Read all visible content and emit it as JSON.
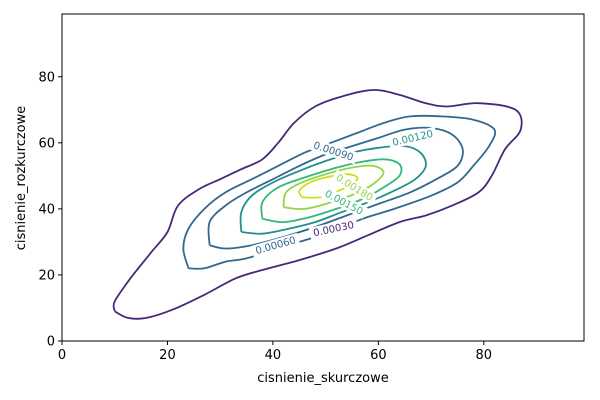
{
  "chart_data": {
    "type": "contour",
    "xlabel": "cisnienie_skurczowe",
    "ylabel": "cisnienie_rozkurczowe",
    "xlim": [
      0,
      99
    ],
    "ylim": [
      0,
      99
    ],
    "x_ticks": [
      0,
      20,
      40,
      60,
      80
    ],
    "y_ticks": [
      0,
      20,
      40,
      60,
      80
    ],
    "grid": false,
    "levels": [
      {
        "value": 0.0003,
        "label": "0.00030",
        "color": "#482878",
        "label_at": [
          51.5,
          34
        ],
        "label_angle": -12,
        "path": [
          [
            10,
            9
          ],
          [
            12.5,
            7
          ],
          [
            16,
            7
          ],
          [
            21,
            9.5
          ],
          [
            27,
            14
          ],
          [
            33,
            19
          ],
          [
            38,
            21.5
          ],
          [
            45,
            24.5
          ],
          [
            52,
            28
          ],
          [
            58,
            32
          ],
          [
            64,
            36
          ],
          [
            69,
            38
          ],
          [
            74,
            41
          ],
          [
            79,
            45
          ],
          [
            81.5,
            50
          ],
          [
            84,
            58
          ],
          [
            87,
            64
          ],
          [
            86,
            70
          ],
          [
            79,
            72
          ],
          [
            73,
            71
          ],
          [
            69,
            72
          ],
          [
            64,
            74.5
          ],
          [
            59,
            76
          ],
          [
            53,
            74
          ],
          [
            48,
            71
          ],
          [
            44,
            66
          ],
          [
            41,
            60
          ],
          [
            38,
            55
          ],
          [
            34,
            52
          ],
          [
            30,
            49
          ],
          [
            26,
            46
          ],
          [
            22,
            41
          ],
          [
            20,
            33
          ],
          [
            17,
            27
          ],
          [
            13,
            19
          ],
          [
            10,
            12
          ],
          [
            10,
            9
          ]
        ]
      },
      {
        "value": 0.0006,
        "label": "0.00060",
        "color": "#31688e",
        "label_at": [
          40.5,
          29
        ],
        "label_angle": -16,
        "path": [
          [
            24,
            22
          ],
          [
            27,
            22
          ],
          [
            31,
            24
          ],
          [
            35,
            25
          ],
          [
            40,
            27.5
          ],
          [
            45,
            30
          ],
          [
            51,
            33
          ],
          [
            57,
            37
          ],
          [
            63,
            40
          ],
          [
            70,
            44
          ],
          [
            75,
            48
          ],
          [
            78,
            53
          ],
          [
            81,
            59
          ],
          [
            82,
            64
          ],
          [
            78,
            67
          ],
          [
            72,
            68
          ],
          [
            66,
            68
          ],
          [
            61,
            66
          ],
          [
            56,
            63
          ],
          [
            51,
            60
          ],
          [
            46,
            57
          ],
          [
            41,
            53
          ],
          [
            36,
            49
          ],
          [
            31,
            45
          ],
          [
            27,
            40
          ],
          [
            24,
            34
          ],
          [
            23,
            28
          ],
          [
            24,
            22
          ]
        ]
      },
      {
        "value": 0.0009,
        "label": "0.00090",
        "color": "#31688e",
        "label_at": [
          51.5,
          57.5
        ],
        "label_angle": 18,
        "path": [
          [
            28,
            29
          ],
          [
            31,
            28
          ],
          [
            36,
            29
          ],
          [
            42,
            31.5
          ],
          [
            48,
            34.5
          ],
          [
            54,
            38
          ],
          [
            60,
            41.5
          ],
          [
            66,
            45
          ],
          [
            71,
            49
          ],
          [
            75,
            53
          ],
          [
            76,
            58
          ],
          [
            74,
            62.5
          ],
          [
            70,
            64.5
          ],
          [
            65,
            64
          ],
          [
            60,
            61.5
          ],
          [
            55,
            59
          ],
          [
            50,
            56.5
          ],
          [
            45,
            53
          ],
          [
            40,
            49
          ],
          [
            35,
            45
          ],
          [
            31,
            41
          ],
          [
            28,
            36
          ],
          [
            28,
            29
          ]
        ]
      },
      {
        "value": 0.0012,
        "label": "0.00120",
        "color": "#21918c",
        "label_at": [
          66.5,
          61.5
        ],
        "label_angle": -13,
        "path": [
          [
            34,
            33
          ],
          [
            38,
            32.5
          ],
          [
            43,
            34
          ],
          [
            48,
            36
          ],
          [
            53,
            39
          ],
          [
            58,
            42
          ],
          [
            63,
            45.5
          ],
          [
            67,
            49
          ],
          [
            69,
            53
          ],
          [
            68,
            57
          ],
          [
            65,
            59
          ],
          [
            60,
            58.5
          ],
          [
            55,
            57
          ],
          [
            50,
            54.5
          ],
          [
            45,
            51.5
          ],
          [
            40,
            48
          ],
          [
            36,
            44
          ],
          [
            34,
            39
          ],
          [
            34,
            33
          ]
        ]
      },
      {
        "value": 0.0015,
        "label": "0.00150",
        "color": "#35b779",
        "label_at": [
          53.5,
          42
        ],
        "label_angle": 28,
        "path": [
          [
            38,
            37
          ],
          [
            42,
            36
          ],
          [
            47,
            37.5
          ],
          [
            52,
            40
          ],
          [
            57,
            43
          ],
          [
            61,
            46.5
          ],
          [
            64,
            50
          ],
          [
            64,
            53.5
          ],
          [
            61,
            55
          ],
          [
            56,
            54
          ],
          [
            51,
            52
          ],
          [
            46,
            49.5
          ],
          [
            41,
            46.5
          ],
          [
            38,
            42
          ],
          [
            38,
            37
          ]
        ]
      },
      {
        "value": 0.0018,
        "label": "0.00180",
        "color": "#90d743",
        "label_at": [
          55.5,
          46.5
        ],
        "label_angle": 32,
        "path": [
          [
            42,
            40.5
          ],
          [
            46,
            40
          ],
          [
            51,
            42
          ],
          [
            55.5,
            44.5
          ],
          [
            59,
            47.5
          ],
          [
            61,
            51
          ],
          [
            59,
            53
          ],
          [
            55,
            52.5
          ],
          [
            50,
            50.5
          ],
          [
            45.5,
            48
          ],
          [
            42.5,
            45
          ],
          [
            42,
            40.5
          ]
        ]
      },
      {
        "value": 0.0021,
        "label": "",
        "color": "#c8e020",
        "label_at": null,
        "label_angle": 0,
        "path": [
          [
            45.5,
            43.5
          ],
          [
            49,
            43.5
          ],
          [
            52.5,
            45.5
          ],
          [
            55,
            47.5
          ],
          [
            56,
            49.5
          ],
          [
            54,
            50.5
          ],
          [
            50,
            49.5
          ],
          [
            47,
            48
          ],
          [
            45,
            45.5
          ],
          [
            45.5,
            43.5
          ]
        ]
      }
    ]
  }
}
